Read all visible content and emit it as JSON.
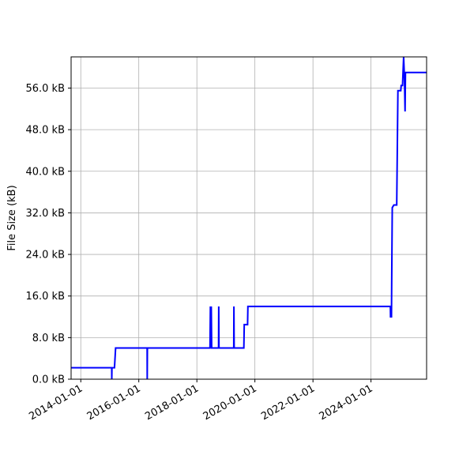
{
  "chart_data": {
    "type": "line",
    "title": "",
    "xlabel": "",
    "ylabel": "File Size (kB)",
    "grid": true,
    "x_ticks": [
      "2014-01-01",
      "2016-01-01",
      "2018-01-01",
      "2020-01-01",
      "2022-01-01",
      "2024-01-01"
    ],
    "y_ticks": [
      0,
      8,
      16,
      24,
      32,
      40,
      48,
      56
    ],
    "y_tick_labels": [
      "0.0 kB",
      "8.0 kB",
      "16.0 kB",
      "24.0 kB",
      "32.0 kB",
      "40.0 kB",
      "48.0 kB",
      "56.0 kB"
    ],
    "xlim": [
      "2013-09-01",
      "2025-12-01"
    ],
    "ylim": [
      0,
      62
    ],
    "colors": {
      "line": "#0000ff",
      "grid": "#b0b0b0"
    },
    "series": [
      {
        "values": [
          [
            "2013-09-01",
            2.2
          ],
          [
            "2015-01-25",
            2.2
          ],
          [
            "2015-01-26",
            0.0
          ],
          [
            "2015-01-28",
            2.2
          ],
          [
            "2015-03-01",
            2.2
          ],
          [
            "2015-03-15",
            6.0
          ],
          [
            "2016-04-15",
            6.0
          ],
          [
            "2016-04-16",
            0.0
          ],
          [
            "2016-04-18",
            6.0
          ],
          [
            "2018-06-15",
            6.0
          ],
          [
            "2018-06-20",
            14.0
          ],
          [
            "2018-06-25",
            6.0
          ],
          [
            "2018-07-01",
            14.0
          ],
          [
            "2018-07-06",
            6.0
          ],
          [
            "2018-10-01",
            6.0
          ],
          [
            "2018-10-03",
            14.0
          ],
          [
            "2018-10-06",
            6.0
          ],
          [
            "2019-04-10",
            6.0
          ],
          [
            "2019-04-12",
            14.0
          ],
          [
            "2019-04-15",
            6.0
          ],
          [
            "2019-08-15",
            6.0
          ],
          [
            "2019-08-20",
            10.5
          ],
          [
            "2019-10-01",
            10.5
          ],
          [
            "2019-10-05",
            14.0
          ],
          [
            "2024-09-01",
            14.0
          ],
          [
            "2024-09-03",
            12.0
          ],
          [
            "2024-09-15",
            12.0
          ],
          [
            "2024-09-18",
            19.0
          ],
          [
            "2024-09-25",
            33.0
          ],
          [
            "2024-10-15",
            33.5
          ],
          [
            "2024-11-20",
            33.5
          ],
          [
            "2024-12-05",
            55.5
          ],
          [
            "2025-01-10",
            55.5
          ],
          [
            "2025-01-15",
            56.5
          ],
          [
            "2025-02-01",
            56.5
          ],
          [
            "2025-02-15",
            62.0
          ],
          [
            "2025-02-25",
            58.0
          ],
          [
            "2025-03-05",
            51.5
          ],
          [
            "2025-03-10",
            59.0
          ],
          [
            "2025-12-01",
            59.0
          ]
        ]
      }
    ]
  }
}
